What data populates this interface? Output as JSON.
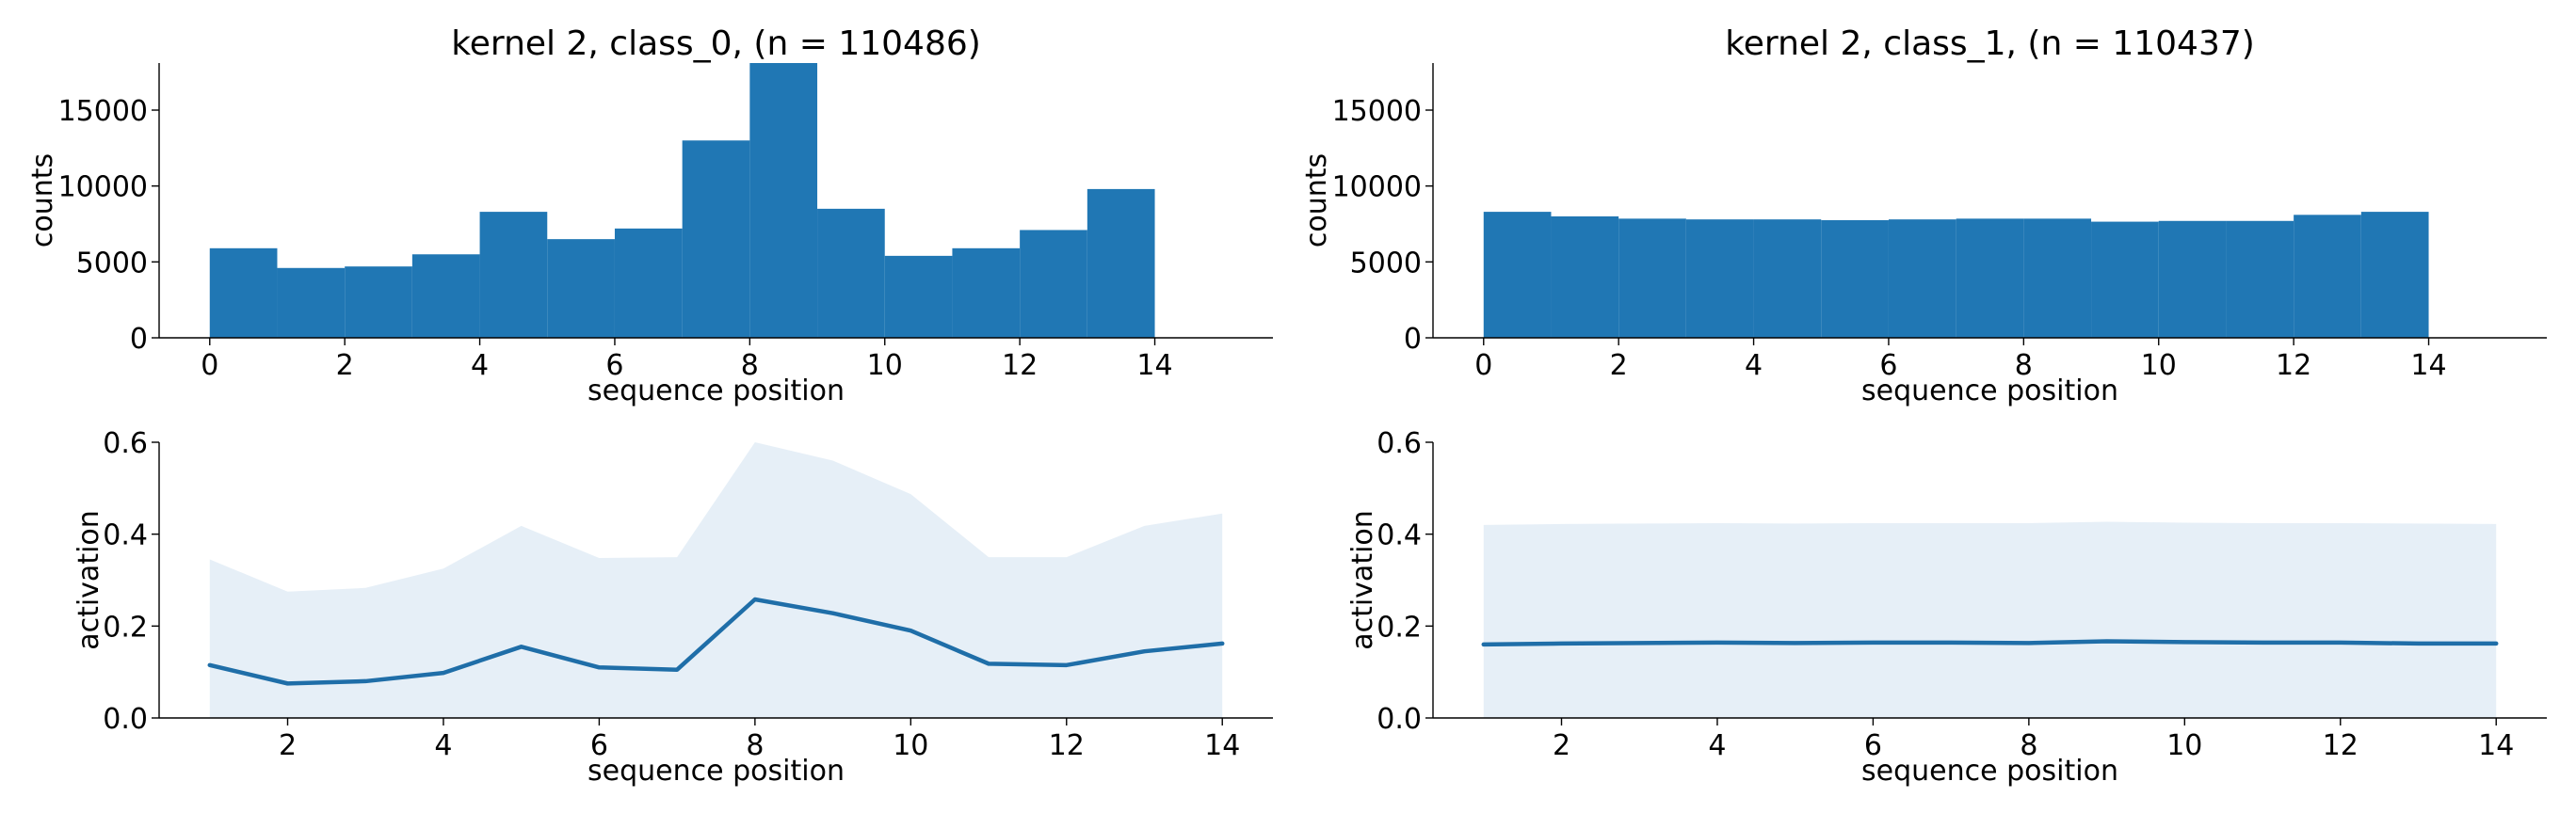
{
  "colors": {
    "bar": "#2077b4",
    "line": "#1f6ea8",
    "band": "#e6eff7",
    "axis": "#000000"
  },
  "chart_data": [
    {
      "type": "bar",
      "title": "kernel 2, class_0, (n = 110486)",
      "xlabel": "sequence position",
      "ylabel": "counts",
      "bin_edges": [
        0,
        1,
        2,
        3,
        4,
        5,
        6,
        7,
        8,
        9,
        10,
        11,
        12,
        13,
        14
      ],
      "values": [
        5900,
        4600,
        4700,
        5500,
        8300,
        6500,
        7200,
        13000,
        18100,
        8500,
        5400,
        5900,
        7100,
        9800
      ],
      "xlim": [
        -0.75,
        15.75
      ],
      "ylim": [
        0,
        18100
      ],
      "xticks": [
        "0",
        "2",
        "4",
        "6",
        "8",
        "10",
        "12",
        "14"
      ],
      "yticks": [
        "0",
        "5000",
        "10000",
        "15000"
      ]
    },
    {
      "type": "bar",
      "title": "kernel 2, class_1, (n = 110437)",
      "xlabel": "sequence position",
      "ylabel": "counts",
      "bin_edges": [
        0,
        1,
        2,
        3,
        4,
        5,
        6,
        7,
        8,
        9,
        10,
        11,
        12,
        13,
        14
      ],
      "values": [
        8300,
        8000,
        7850,
        7800,
        7800,
        7750,
        7800,
        7850,
        7850,
        7650,
        7700,
        7700,
        8100,
        8300
      ],
      "xlim": [
        -0.75,
        15.75
      ],
      "ylim": [
        0,
        18100
      ],
      "xticks": [
        "0",
        "2",
        "4",
        "6",
        "8",
        "10",
        "12",
        "14"
      ],
      "yticks": [
        "0",
        "5000",
        "10000",
        "15000"
      ]
    },
    {
      "type": "area",
      "title": "",
      "xlabel": "sequence position",
      "ylabel": "activation",
      "x": [
        1,
        2,
        3,
        4,
        5,
        6,
        7,
        8,
        9,
        10,
        11,
        12,
        13,
        14
      ],
      "y": [
        0.115,
        0.075,
        0.08,
        0.098,
        0.155,
        0.11,
        0.105,
        0.258,
        0.228,
        0.19,
        0.118,
        0.115,
        0.145,
        0.162
      ],
      "upper": [
        0.345,
        0.275,
        0.283,
        0.325,
        0.418,
        0.348,
        0.35,
        0.6,
        0.56,
        0.487,
        0.35,
        0.35,
        0.418,
        0.445
      ],
      "lower": [
        0,
        0,
        0,
        0,
        0,
        0,
        0,
        0,
        0,
        0,
        0,
        0,
        0,
        0
      ],
      "xlim": [
        0.35,
        14.65
      ],
      "ylim": [
        0,
        0.6
      ],
      "xticks": [
        "2",
        "4",
        "6",
        "8",
        "10",
        "12",
        "14"
      ],
      "yticks": [
        "0.0",
        "0.2",
        "0.4",
        "0.6"
      ]
    },
    {
      "type": "area",
      "title": "",
      "xlabel": "sequence position",
      "ylabel": "activation",
      "x": [
        1,
        2,
        3,
        4,
        5,
        6,
        7,
        8,
        9,
        10,
        11,
        12,
        13,
        14
      ],
      "y": [
        0.16,
        0.162,
        0.163,
        0.164,
        0.163,
        0.164,
        0.164,
        0.163,
        0.167,
        0.165,
        0.164,
        0.164,
        0.162,
        0.162
      ],
      "upper": [
        0.42,
        0.422,
        0.423,
        0.424,
        0.423,
        0.424,
        0.424,
        0.424,
        0.427,
        0.425,
        0.424,
        0.424,
        0.423,
        0.422
      ],
      "lower": [
        0,
        0,
        0,
        0,
        0,
        0,
        0,
        0,
        0,
        0,
        0,
        0,
        0,
        0
      ],
      "xlim": [
        0.35,
        14.65
      ],
      "ylim": [
        0,
        0.6
      ],
      "xticks": [
        "2",
        "4",
        "6",
        "8",
        "10",
        "12",
        "14"
      ],
      "yticks": [
        "0.0",
        "0.2",
        "0.4",
        "0.6"
      ]
    }
  ]
}
